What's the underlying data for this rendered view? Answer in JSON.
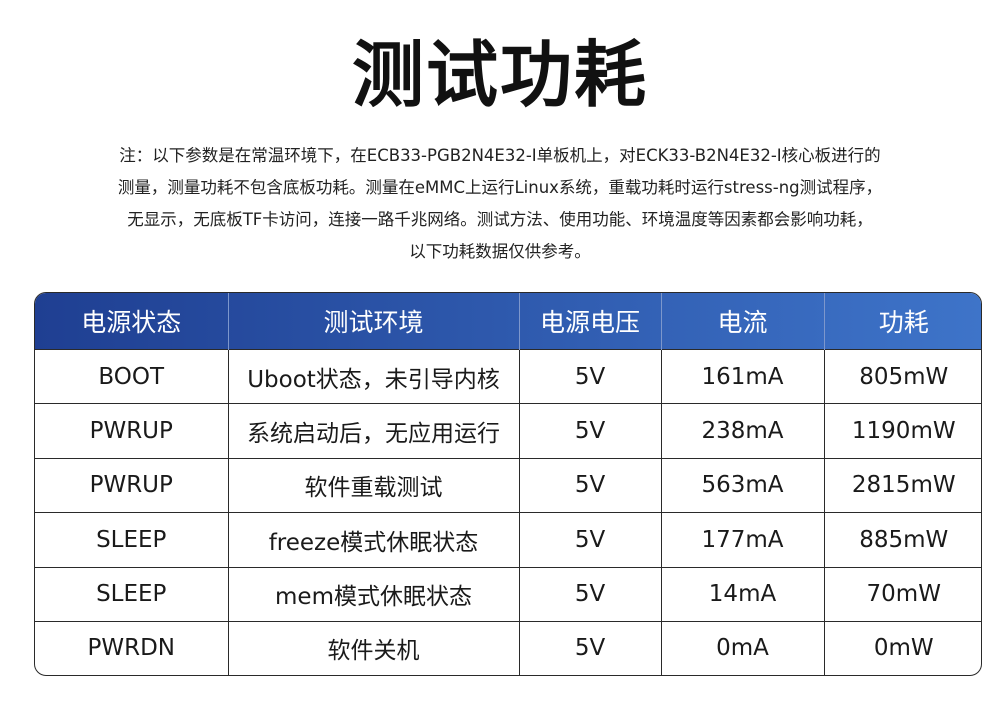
{
  "title": "测试功耗",
  "note": [
    "注：以下参数是在常温环境下，在ECB33-PGB2N4E32-I单板机上，对ECK33-B2N4E32-I核心板进行的",
    "测量，测量功耗不包含底板功耗。测量在eMMC上运行Linux系统，重载功耗时运行stress-ng测试程序，",
    "无显示，无底板TF卡访问，连接一路千兆网络。测试方法、使用功能、环境温度等因素都会影响功耗，",
    "以下功耗数据仅供参考。"
  ],
  "table": {
    "header_colors": [
      "#1f3f92",
      "#3e74c9"
    ],
    "columns": [
      "电源状态",
      "测试环境",
      "电源电压",
      "电流",
      "功耗"
    ],
    "rows": [
      [
        "BOOT",
        "Uboot状态，未引导内核",
        "5V",
        "161mA",
        "805mW"
      ],
      [
        "PWRUP",
        "系统启动后，无应用运行",
        "5V",
        "238mA",
        "1190mW"
      ],
      [
        "PWRUP",
        "软件重载测试",
        "5V",
        "563mA",
        "2815mW"
      ],
      [
        "SLEEP",
        "freeze模式休眠状态",
        "5V",
        "177mA",
        "885mW"
      ],
      [
        "SLEEP",
        "mem模式休眠状态",
        "5V",
        "14mA",
        "70mW"
      ],
      [
        "PWRDN",
        "软件关机",
        "5V",
        "0mA",
        "0mW"
      ]
    ]
  }
}
